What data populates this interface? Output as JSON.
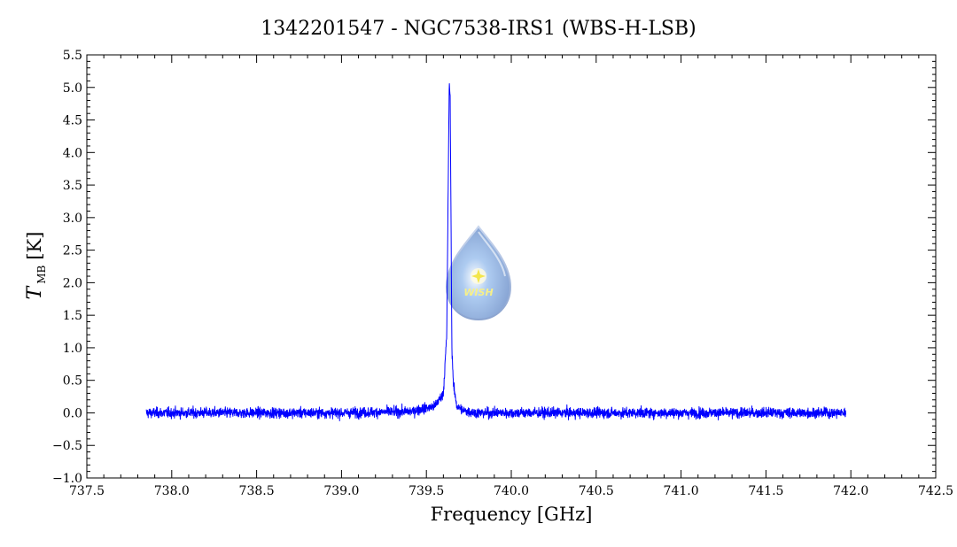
{
  "chart_data": {
    "type": "line",
    "title": "1342201547 - NGC7538-IRS1 (WBS-H-LSB)",
    "xlabel": "Frequency [GHz]",
    "ylabel_symbol": "T",
    "ylabel_subscript": "MB",
    "ylabel_unit": "[K]",
    "xlim": [
      737.5,
      742.5
    ],
    "ylim": [
      -1.0,
      5.5
    ],
    "x_ticks": [
      737.5,
      738.0,
      738.5,
      739.0,
      739.5,
      740.0,
      740.5,
      741.0,
      741.5,
      742.0,
      742.5
    ],
    "x_tick_labels": [
      "737.5",
      "738.0",
      "738.5",
      "739.0",
      "739.5",
      "740.0",
      "740.5",
      "741.0",
      "741.5",
      "742.0",
      "742.5"
    ],
    "y_ticks": [
      -1.0,
      -0.5,
      0.0,
      0.5,
      1.0,
      1.5,
      2.0,
      2.5,
      3.0,
      3.5,
      4.0,
      4.5,
      5.0,
      5.5
    ],
    "y_tick_labels": [
      "−1.0",
      "−0.5",
      "0.0",
      "0.5",
      "1.0",
      "1.5",
      "2.0",
      "2.5",
      "3.0",
      "3.5",
      "4.0",
      "4.5",
      "5.0",
      "5.5"
    ],
    "series": [
      {
        "color": "#0000ff",
        "x_range": [
          737.85,
          741.97
        ],
        "baseline": 0.0,
        "noise_rms": 0.07,
        "x": [
          737.85,
          738.5,
          739.0,
          739.4,
          739.55,
          739.6,
          739.62,
          739.63,
          739.635,
          739.64,
          739.645,
          739.65,
          739.66,
          739.68,
          739.72,
          739.8,
          740.5,
          741.0,
          741.97
        ],
        "y": [
          0.0,
          0.0,
          0.0,
          0.02,
          0.1,
          0.3,
          1.2,
          3.9,
          5.12,
          4.8,
          3.0,
          1.0,
          0.4,
          0.1,
          0.03,
          0.0,
          0.0,
          0.0,
          0.0
        ]
      }
    ],
    "grid": false,
    "legend": "none"
  },
  "watermark": {
    "text": "WISH"
  }
}
